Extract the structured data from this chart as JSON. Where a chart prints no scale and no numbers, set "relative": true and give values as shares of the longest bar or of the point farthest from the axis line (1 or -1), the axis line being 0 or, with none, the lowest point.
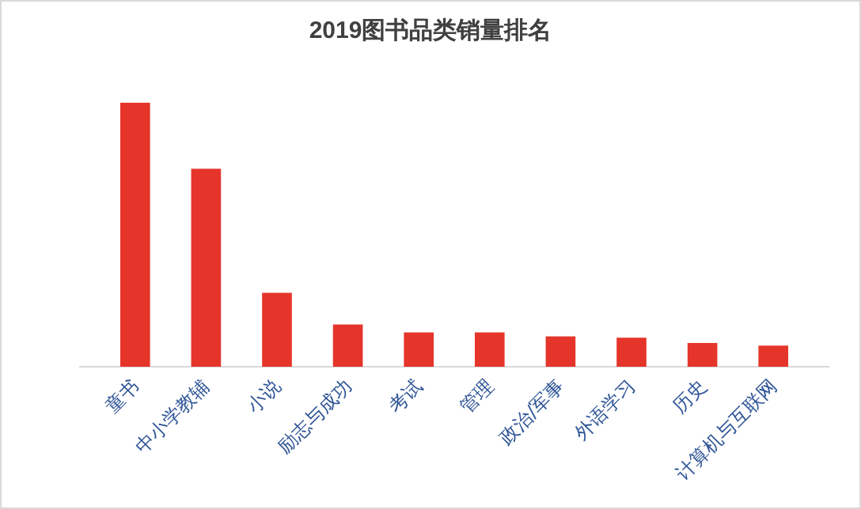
{
  "chart_data": {
    "type": "bar",
    "title": "2019图书品类销量排名",
    "relative": true,
    "categories": [
      "童书",
      "中小学教辅",
      "小说",
      "励志与成功",
      "考试",
      "管理",
      "政治/军事",
      "外语学习",
      "历史",
      "计算机与互联网"
    ],
    "values": [
      1,
      0.75,
      0.28,
      0.16,
      0.13,
      0.13,
      0.115,
      0.11,
      0.09,
      0.08
    ],
    "color": "#e5352a"
  }
}
